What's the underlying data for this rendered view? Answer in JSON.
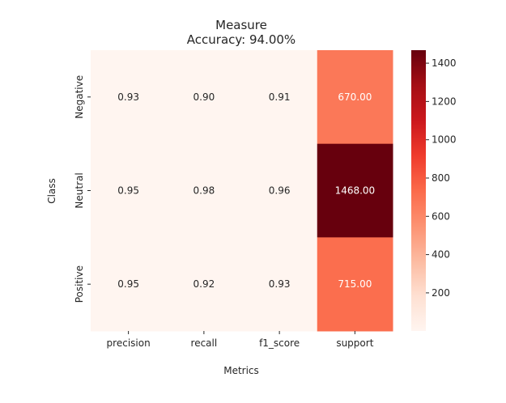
{
  "chart_data": {
    "type": "heatmap",
    "title": "Measure",
    "subtitle": "Accuracy: 94.00%",
    "xlabel": "Metrics",
    "ylabel": "Class",
    "columns": [
      "precision",
      "recall",
      "f1_score",
      "support"
    ],
    "rows": [
      "Negative",
      "Neutral",
      "Positive"
    ],
    "values": [
      [
        0.93,
        0.9,
        0.91,
        670.0
      ],
      [
        0.95,
        0.98,
        0.96,
        1468.0
      ],
      [
        0.95,
        0.92,
        0.93,
        715.0
      ]
    ],
    "cell_labels": [
      [
        "0.93",
        "0.90",
        "0.91",
        "670.00"
      ],
      [
        "0.95",
        "0.98",
        "0.96",
        "1468.00"
      ],
      [
        "0.95",
        "0.92",
        "0.93",
        "715.00"
      ]
    ],
    "colormap": "Reds",
    "colorbar": {
      "min": 0.9,
      "max": 1468,
      "ticks": [
        200,
        400,
        600,
        800,
        1000,
        1200,
        1400
      ]
    },
    "colors": {
      "low": "#fff5f0",
      "high": "#67000d"
    }
  }
}
